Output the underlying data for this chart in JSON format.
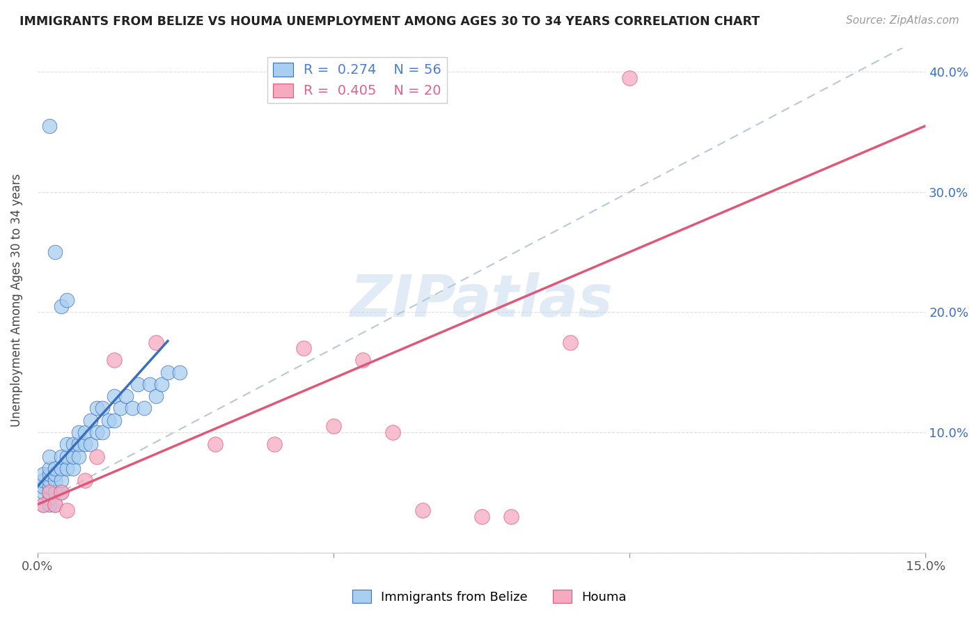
{
  "title": "IMMIGRANTS FROM BELIZE VS HOUMA UNEMPLOYMENT AMONG AGES 30 TO 34 YEARS CORRELATION CHART",
  "source": "Source: ZipAtlas.com",
  "ylabel": "Unemployment Among Ages 30 to 34 years",
  "xlim": [
    0.0,
    0.15
  ],
  "ylim": [
    0.0,
    0.42
  ],
  "legend_labels": [
    "Immigrants from Belize",
    "Houma"
  ],
  "r1": 0.274,
  "n1": 56,
  "r2": 0.405,
  "n2": 20,
  "color_blue": "#a8cef0",
  "color_pink": "#f5aac0",
  "color_blue_line": "#3a6fbf",
  "color_pink_line": "#e05878",
  "color_dashed_line": "#b8c8d8",
  "watermark_color": "#c5d8ef",
  "scatter_blue": {
    "x": [
      0.001,
      0.001,
      0.001,
      0.001,
      0.001,
      0.002,
      0.002,
      0.002,
      0.002,
      0.002,
      0.002,
      0.002,
      0.002,
      0.003,
      0.003,
      0.003,
      0.003,
      0.003,
      0.004,
      0.004,
      0.004,
      0.004,
      0.005,
      0.005,
      0.005,
      0.006,
      0.006,
      0.006,
      0.007,
      0.007,
      0.007,
      0.008,
      0.008,
      0.009,
      0.009,
      0.01,
      0.01,
      0.011,
      0.011,
      0.012,
      0.013,
      0.013,
      0.014,
      0.015,
      0.016,
      0.017,
      0.018,
      0.019,
      0.02,
      0.021,
      0.022,
      0.024,
      0.002,
      0.003,
      0.004,
      0.005
    ],
    "y": [
      0.04,
      0.05,
      0.055,
      0.06,
      0.065,
      0.04,
      0.045,
      0.05,
      0.055,
      0.06,
      0.065,
      0.07,
      0.08,
      0.04,
      0.05,
      0.06,
      0.065,
      0.07,
      0.05,
      0.06,
      0.07,
      0.08,
      0.07,
      0.08,
      0.09,
      0.07,
      0.08,
      0.09,
      0.08,
      0.09,
      0.1,
      0.09,
      0.1,
      0.09,
      0.11,
      0.1,
      0.12,
      0.1,
      0.12,
      0.11,
      0.11,
      0.13,
      0.12,
      0.13,
      0.12,
      0.14,
      0.12,
      0.14,
      0.13,
      0.14,
      0.15,
      0.15,
      0.355,
      0.25,
      0.205,
      0.21
    ]
  },
  "scatter_pink": {
    "x": [
      0.001,
      0.002,
      0.003,
      0.004,
      0.005,
      0.008,
      0.01,
      0.013,
      0.02,
      0.03,
      0.04,
      0.05,
      0.06,
      0.065,
      0.075,
      0.08,
      0.09,
      0.1,
      0.045,
      0.055
    ],
    "y": [
      0.04,
      0.05,
      0.04,
      0.05,
      0.035,
      0.06,
      0.08,
      0.16,
      0.175,
      0.09,
      0.09,
      0.105,
      0.1,
      0.035,
      0.03,
      0.03,
      0.175,
      0.395,
      0.17,
      0.16
    ]
  },
  "blue_line_x": [
    0.0,
    0.022
  ],
  "blue_line_slope": 5.5,
  "blue_line_intercept": 0.055,
  "dashed_line_x": [
    0.0,
    0.15
  ],
  "dashed_line_slope": 2.6,
  "dashed_line_intercept": 0.04,
  "pink_line_x": [
    0.0,
    0.15
  ],
  "pink_line_slope": 2.1,
  "pink_line_intercept": 0.04
}
